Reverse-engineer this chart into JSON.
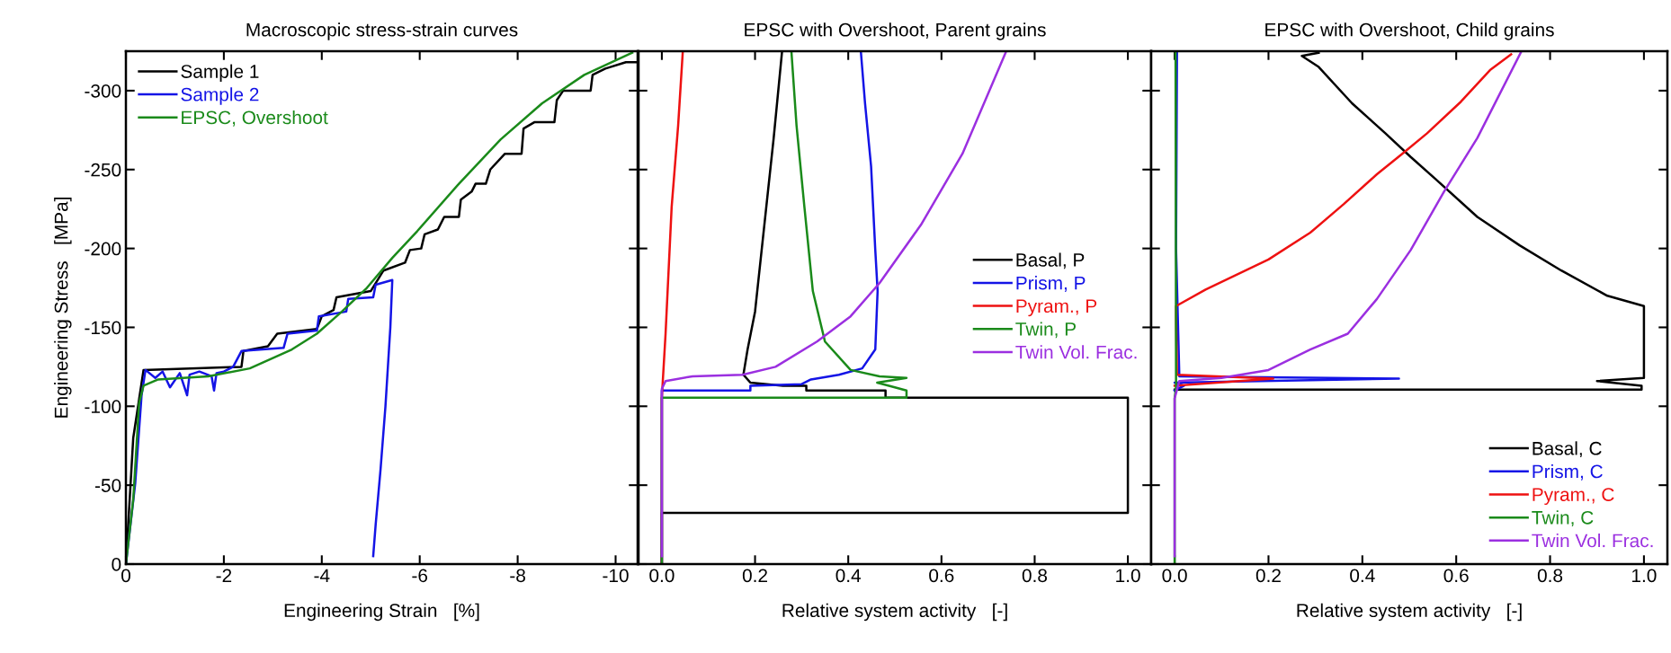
{
  "chart_data": [
    {
      "type": "line",
      "title": "Macroscopic stress-strain curves",
      "xlabel": "Engineering Strain   [%]",
      "ylabel": "Engineering Stress   [MPa]",
      "xlim": [
        0,
        -10.45
      ],
      "xticks": [
        0,
        -2,
        -4,
        -6,
        -8,
        -10
      ],
      "ylim": [
        0,
        -325
      ],
      "yticks": [
        0,
        -50,
        -100,
        -150,
        -200,
        -250,
        -300
      ],
      "legend": "top left",
      "grid": false,
      "series": [
        {
          "name": "Sample 1",
          "color": "#000000",
          "x": [
            0,
            -0.15,
            -0.36,
            -2.36,
            -2.4,
            -2.9,
            -3.09,
            -3.9,
            -4.0,
            -4.24,
            -4.3,
            -5.0,
            -5.26,
            -5.7,
            -5.8,
            -6.03,
            -6.1,
            -6.37,
            -6.5,
            -6.8,
            -6.84,
            -7.06,
            -7.14,
            -7.35,
            -7.44,
            -7.74,
            -8.08,
            -8.12,
            -8.34,
            -8.75,
            -8.8,
            -8.93,
            -9.49,
            -9.53,
            -9.79,
            -10.21,
            -10.45
          ],
          "values": [
            0,
            -80,
            -123,
            -125,
            -135,
            -138,
            -146,
            -149,
            -157,
            -161,
            -169,
            -173,
            -186,
            -191,
            -199,
            -200,
            -209,
            -212,
            -220,
            -220,
            -231,
            -236,
            -241,
            -241,
            -250,
            -260,
            -260,
            -276,
            -280,
            -280,
            -294,
            -300,
            -300,
            -310,
            -314,
            -318,
            -318
          ]
        },
        {
          "name": "Sample 2",
          "color": "#1414e6",
          "x": [
            0,
            -0.19,
            -0.32,
            -0.4,
            -0.6,
            -0.75,
            -0.9,
            -1.1,
            -1.25,
            -1.3,
            -1.5,
            -1.75,
            -1.8,
            -1.85,
            -2.0,
            -2.19,
            -2.36,
            -3.22,
            -3.3,
            -3.9,
            -3.94,
            -4.5,
            -4.54,
            -5.05,
            -5.1,
            -5.44,
            -5.4,
            -5.3,
            -5.2,
            -5.1,
            -5.05
          ],
          "values": [
            0,
            -51,
            -107,
            -123,
            -118,
            -122,
            -112,
            -121,
            -107,
            -120,
            -122,
            -119,
            -110,
            -121,
            -122,
            -125,
            -135,
            -137,
            -146,
            -148,
            -157,
            -160,
            -168,
            -169,
            -177,
            -180,
            -150,
            -100,
            -60,
            -25,
            -5
          ]
        },
        {
          "name": "EPSC, Overshoot",
          "color": "#1a8a1a",
          "x": [
            0,
            -0.15,
            -0.27,
            -0.36,
            -0.66,
            -1.68,
            -2.53,
            -3.39,
            -3.9,
            -4.41,
            -4.92,
            -5.44,
            -5.95,
            -6.8,
            -7.65,
            -8.5,
            -9.36,
            -10.34
          ],
          "values": [
            0,
            -41,
            -102,
            -113,
            -117,
            -119,
            -124,
            -136,
            -146,
            -160,
            -175,
            -194,
            -211,
            -241,
            -269,
            -292,
            -310,
            -324
          ]
        }
      ]
    },
    {
      "type": "line",
      "title": "EPSC with Overshoot, Parent grains",
      "xlabel": "Relative system activity   [-]",
      "xlim": [
        -0.05,
        1.05
      ],
      "xticks": [
        {
          "value": 0,
          "label": "0.0"
        },
        {
          "value": 0.2,
          "label": "0.2"
        },
        {
          "value": 0.4,
          "label": "0.4"
        },
        {
          "value": 0.6,
          "label": "0.6"
        },
        {
          "value": 0.8,
          "label": "0.8"
        },
        {
          "value": 1,
          "label": "1.0"
        }
      ],
      "ylim": [
        0,
        -325
      ],
      "yticks": [
        {
          "value": 0,
          "label": null
        },
        {
          "value": -50,
          "label": null
        },
        {
          "value": -100,
          "label": null
        },
        {
          "value": -150,
          "label": null
        },
        {
          "value": -200,
          "label": null
        },
        {
          "value": -250,
          "label": null
        },
        {
          "value": -300,
          "label": null
        }
      ],
      "tick_labels": "x",
      "legend": "right",
      "grid": false,
      "series": [
        {
          "name": "Basal, P",
          "color": "#000000",
          "x": [
            0,
            0,
            1,
            1,
            0.48,
            0.48,
            0.31,
            0.31,
            0.26,
            0.19,
            0.175,
            0.184,
            0.2,
            0.22,
            0.24,
            0.258
          ],
          "values": [
            0,
            -32.5,
            -32.5,
            -105.5,
            -105.5,
            -110,
            -110,
            -113,
            -113,
            -115,
            -120,
            -136,
            -160,
            -215,
            -270,
            -325
          ]
        },
        {
          "name": "Prism, P",
          "color": "#1414e6",
          "x": [
            0,
            0,
            0.19,
            0.19,
            0.3,
            0.32,
            0.38,
            0.43,
            0.458,
            0.463,
            0.458,
            0.449,
            0.436,
            0.427
          ],
          "values": [
            0,
            -110,
            -110,
            -113,
            -114,
            -117,
            -120,
            -124,
            -136,
            -173,
            -199,
            -252,
            -292,
            -325
          ]
        },
        {
          "name": "Pyram., P",
          "color": "#ee1111",
          "x": [
            0,
            0,
            0.008,
            0.021,
            0.035,
            0.045
          ],
          "values": [
            0,
            -105.5,
            -146,
            -226,
            -278,
            -325
          ]
        },
        {
          "name": "Twin, P",
          "color": "#1a8a1a",
          "x": [
            0,
            0,
            0.525,
            0.525,
            0.5,
            0.462,
            0.525,
            0.467,
            0.405,
            0.35,
            0.324,
            0.306,
            0.289,
            0.278
          ],
          "values": [
            0,
            -105.5,
            -105.5,
            -110,
            -112,
            -115,
            -118,
            -119,
            -123,
            -141,
            -173,
            -226,
            -278,
            -325
          ]
        },
        {
          "name": "Twin Vol. Frac.",
          "color": "#9b2fe0",
          "x": [
            0,
            0,
            0.008,
            0.066,
            0.173,
            0.244,
            0.333,
            0.405,
            0.467,
            0.556,
            0.645,
            0.739
          ],
          "values": [
            -5,
            -111,
            -116,
            -119,
            -120,
            -125,
            -141,
            -157,
            -178,
            -215,
            -260,
            -325
          ]
        }
      ]
    },
    {
      "type": "line",
      "title": "EPSC with Overshoot, Child grains",
      "xlabel": "Relative system activity   [-]",
      "xlim": [
        -0.05,
        1.05
      ],
      "xticks": [
        {
          "value": 0,
          "label": "0.0"
        },
        {
          "value": 0.2,
          "label": "0.2"
        },
        {
          "value": 0.4,
          "label": "0.4"
        },
        {
          "value": 0.6,
          "label": "0.6"
        },
        {
          "value": 0.8,
          "label": "0.8"
        },
        {
          "value": 1,
          "label": "1.0"
        }
      ],
      "ylim": [
        0,
        -325
      ],
      "yticks": [
        {
          "value": 0,
          "label": null
        },
        {
          "value": -50,
          "label": null
        },
        {
          "value": -100,
          "label": null
        },
        {
          "value": -150,
          "label": null
        },
        {
          "value": -200,
          "label": null
        },
        {
          "value": -250,
          "label": null
        },
        {
          "value": -300,
          "label": null
        }
      ],
      "tick_labels": "x",
      "legend": "bottom right",
      "grid": false,
      "series": [
        {
          "name": "Basal, C",
          "color": "#000000",
          "x": [
            0,
            0.995,
            0.995,
            0.9,
            1.0,
            1.0,
            0.922,
            0.824,
            0.735,
            0.645,
            0.556,
            0.503,
            0.449,
            0.378,
            0.307,
            0.271,
            0.307
          ],
          "values": [
            -110.5,
            -110.5,
            -113,
            -116,
            -118,
            -163.5,
            -170,
            -186,
            -202,
            -220,
            -244,
            -258,
            -273,
            -292,
            -315,
            -322,
            -324
          ]
        },
        {
          "name": "Prism, C",
          "color": "#1414e6",
          "x": [
            0,
            0.02,
            0,
            0.478,
            0.01,
            0.003,
            0.005
          ],
          "values": [
            -110,
            -113,
            -115,
            -117.5,
            -119,
            -200,
            -325
          ]
        },
        {
          "name": "Pyram., C",
          "color": "#ee1111",
          "x": [
            0,
            0.21,
            0.005,
            0.003,
            0.003,
            0.066,
            0.2,
            0.289,
            0.36,
            0.431,
            0.485,
            0.538,
            0.61,
            0.672,
            0.717
          ],
          "values": [
            -113,
            -117.5,
            -120,
            -157,
            -163.5,
            -174,
            -193,
            -210,
            -228,
            -247,
            -260,
            -273,
            -293,
            -313,
            -323
          ]
        },
        {
          "name": "Twin, C",
          "color": "#1a8a1a",
          "x": [
            0,
            0,
            0.003,
            0.002
          ],
          "values": [
            0,
            -105,
            -112,
            -325
          ]
        },
        {
          "name": "Twin Vol. Frac.",
          "color": "#9b2fe0",
          "x": [
            0,
            0,
            0.01,
            0.1,
            0.2,
            0.289,
            0.369,
            0.431,
            0.503,
            0.574,
            0.645,
            0.739
          ],
          "values": [
            -5,
            -105,
            -116,
            -118,
            -123,
            -136,
            -146,
            -168,
            -199,
            -236,
            -270,
            -325
          ]
        }
      ]
    }
  ]
}
